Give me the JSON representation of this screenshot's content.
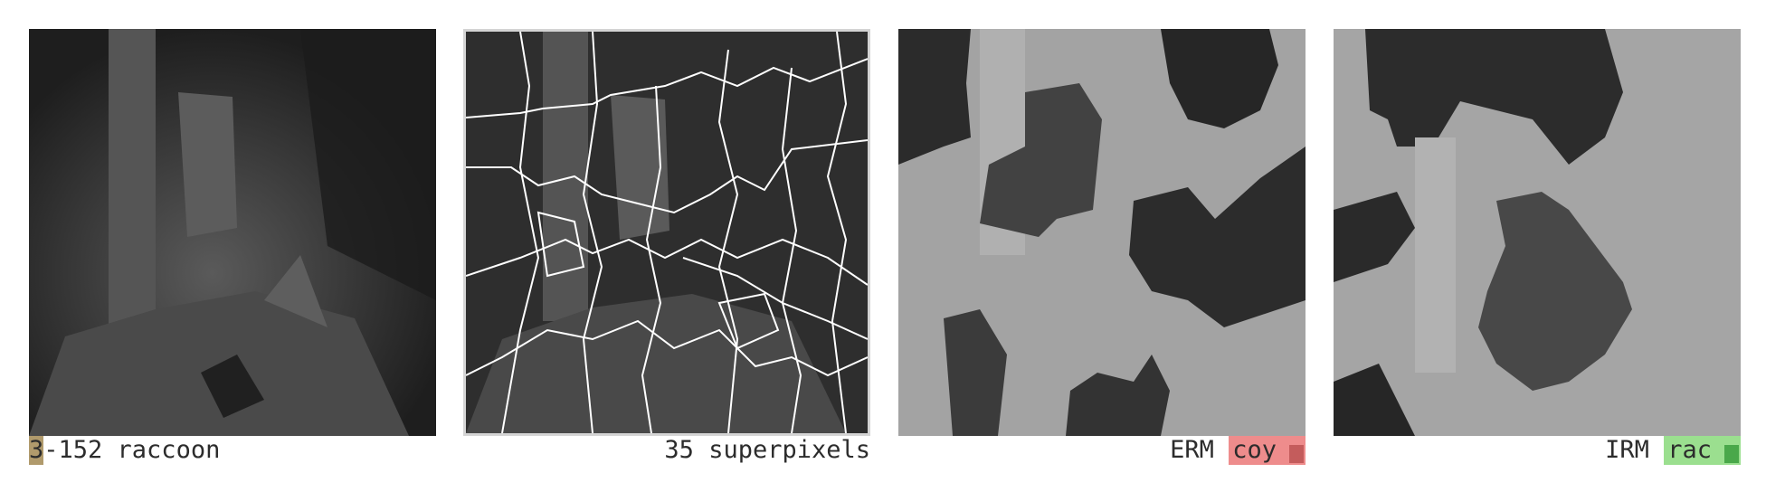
{
  "panels": [
    {
      "caption_prefix": "3",
      "caption_rest": "-152 raccoon",
      "prefix_color": "#b09a6c"
    },
    {
      "caption": "35 superpixels"
    },
    {
      "method": "ERM",
      "prediction": "coy",
      "badge_color": "#ee8c8c",
      "swatch_color": "#c45c5c"
    },
    {
      "method": "IRM",
      "prediction": "rac",
      "badge_color": "#9bdf8f",
      "swatch_color": "#4aa84a"
    }
  ]
}
